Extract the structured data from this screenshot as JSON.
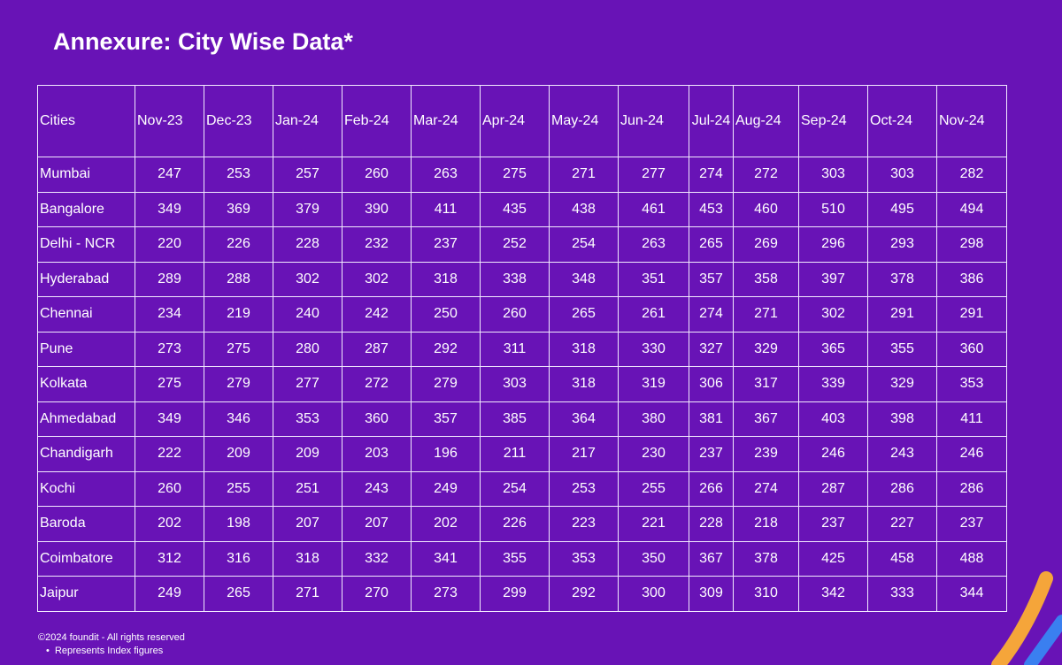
{
  "header": {
    "title": "Annexure: City Wise Data*"
  },
  "table": {
    "columns": [
      "Cities",
      "Nov-23",
      "Dec-23",
      "Jan-24",
      "Feb-24",
      "Mar-24",
      "Apr-24",
      "May-24",
      "Jun-24",
      "Jul-24",
      "Aug-24",
      "Sep-24",
      "Oct-24",
      "Nov-24"
    ],
    "rows": [
      [
        "Mumbai",
        247,
        253,
        257,
        260,
        263,
        275,
        271,
        277,
        274,
        272,
        303,
        303,
        282
      ],
      [
        "Bangalore",
        349,
        369,
        379,
        390,
        411,
        435,
        438,
        461,
        453,
        460,
        510,
        495,
        494
      ],
      [
        "Delhi - NCR",
        220,
        226,
        228,
        232,
        237,
        252,
        254,
        263,
        265,
        269,
        296,
        293,
        298
      ],
      [
        "Hyderabad",
        289,
        288,
        302,
        302,
        318,
        338,
        348,
        351,
        357,
        358,
        397,
        378,
        386
      ],
      [
        "Chennai",
        234,
        219,
        240,
        242,
        250,
        260,
        265,
        261,
        274,
        271,
        302,
        291,
        291
      ],
      [
        "Pune",
        273,
        275,
        280,
        287,
        292,
        311,
        318,
        330,
        327,
        329,
        365,
        355,
        360
      ],
      [
        "Kolkata",
        275,
        279,
        277,
        272,
        279,
        303,
        318,
        319,
        306,
        317,
        339,
        329,
        353
      ],
      [
        "Ahmedabad",
        349,
        346,
        353,
        360,
        357,
        385,
        364,
        380,
        381,
        367,
        403,
        398,
        411
      ],
      [
        "Chandigarh",
        222,
        209,
        209,
        203,
        196,
        211,
        217,
        230,
        237,
        239,
        246,
        243,
        246
      ],
      [
        "Kochi",
        260,
        255,
        251,
        243,
        249,
        254,
        253,
        255,
        266,
        274,
        287,
        286,
        286
      ],
      [
        "Baroda",
        202,
        198,
        207,
        207,
        202,
        226,
        223,
        221,
        228,
        218,
        237,
        227,
        237
      ],
      [
        "Coimbatore",
        312,
        316,
        318,
        332,
        341,
        355,
        353,
        350,
        367,
        378,
        425,
        458,
        488
      ],
      [
        "Jaipur",
        249,
        265,
        271,
        270,
        273,
        299,
        292,
        300,
        309,
        310,
        342,
        333,
        344
      ]
    ]
  },
  "footer": {
    "copyright": "©2024 foundit - All rights reserved",
    "note": "Represents Index  figures"
  }
}
